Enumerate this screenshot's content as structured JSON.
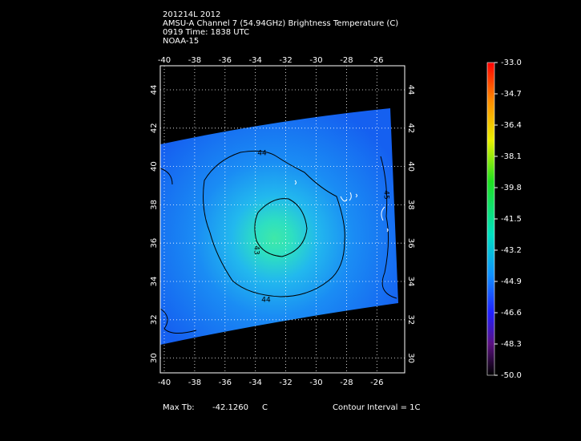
{
  "header": {
    "lines": [
      "201214L 2012",
      "AMSU-A Channel 7 (54.94GHz) Brightness Temperature (C)",
      "0919 Time: 1838 UTC",
      "NOAA-15"
    ]
  },
  "map": {
    "lon_labels": [
      "-40",
      "-38",
      "-36",
      "-34",
      "-32",
      "-30",
      "-28",
      "-26"
    ],
    "lat_labels": [
      "44",
      "42",
      "40",
      "38",
      "36",
      "34",
      "32",
      "30"
    ],
    "contour_labels": [
      "44",
      "43",
      "45",
      "44"
    ]
  },
  "colorbar": {
    "labels": [
      "-33.0",
      "-34.7",
      "-36.4",
      "-38.1",
      "-39.8",
      "-41.5",
      "-43.2",
      "-44.9",
      "-46.6",
      "-48.3",
      "-50.0"
    ]
  },
  "footer": {
    "max_label": "Max Tb:",
    "max_value": "-42.1260",
    "max_unit": "C",
    "contour_interval": "Contour Interval = 1C"
  }
}
